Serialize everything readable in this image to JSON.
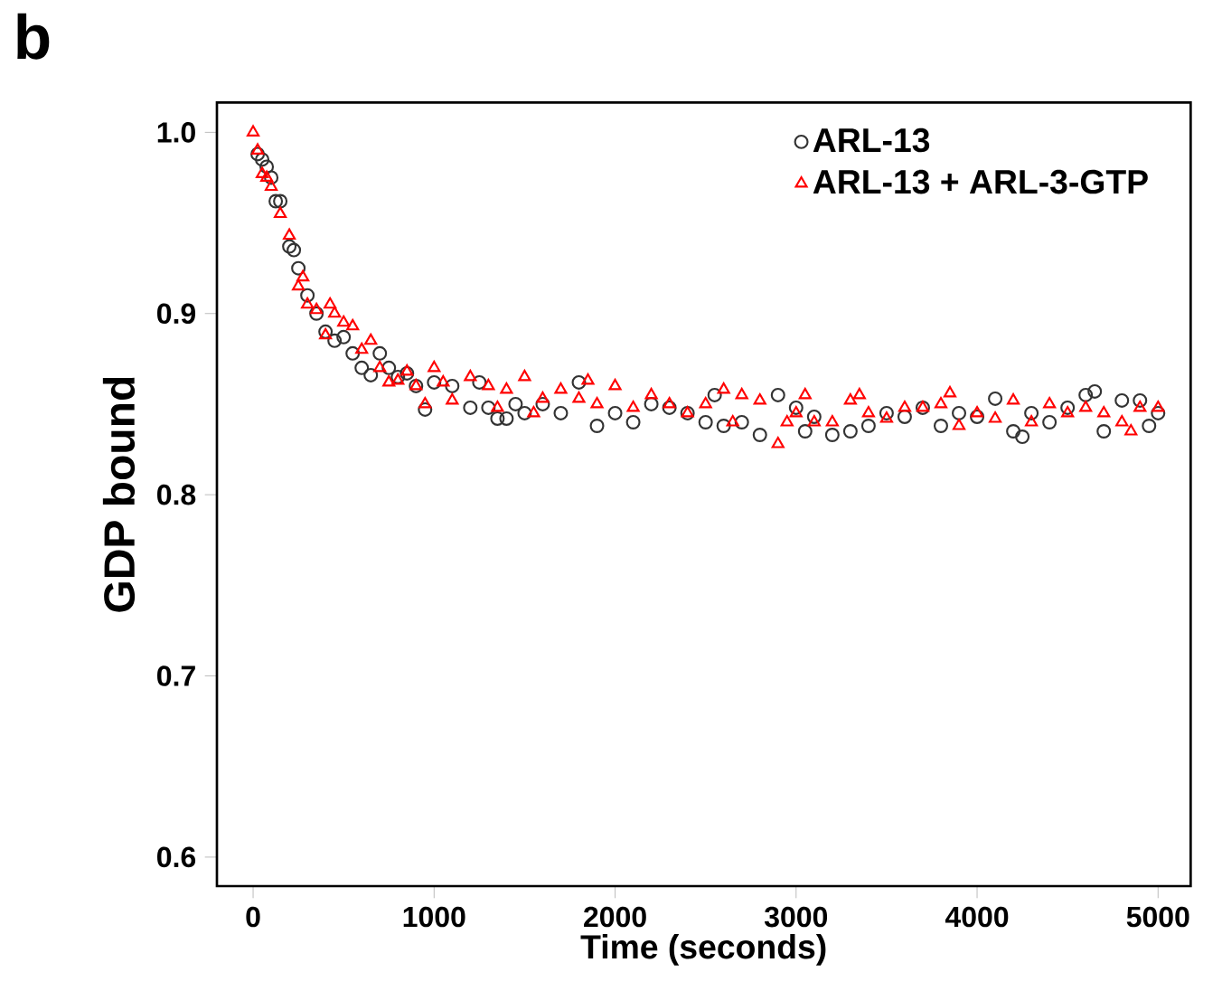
{
  "chart_data": {
    "type": "scatter",
    "xlabel": "Time (seconds)",
    "ylabel": "GDP bound",
    "annotations": [
      "b"
    ],
    "xlim": [
      -200,
      5180
    ],
    "ylim": [
      0.584,
      1.0165
    ],
    "xticks": [
      0,
      1000,
      2000,
      3000,
      4000,
      5000
    ],
    "yticks": [
      0.6,
      0.7,
      0.8,
      0.9,
      {
        "value": 1.0,
        "label": "1.0"
      }
    ],
    "legend": "top right",
    "series": [
      {
        "name": "ARL-13",
        "color": "#333333",
        "marker": "circle",
        "x": [
          25,
          50,
          75,
          100,
          125,
          150,
          200,
          225,
          250,
          300,
          350,
          400,
          450,
          500,
          550,
          600,
          650,
          700,
          750,
          800,
          850,
          900,
          950,
          1000,
          1100,
          1200,
          1250,
          1300,
          1350,
          1400,
          1450,
          1500,
          1600,
          1700,
          1800,
          1900,
          2000,
          2100,
          2200,
          2300,
          2400,
          2500,
          2550,
          2600,
          2700,
          2800,
          2900,
          3000,
          3050,
          3100,
          3200,
          3300,
          3400,
          3500,
          3600,
          3700,
          3800,
          3900,
          4000,
          4100,
          4200,
          4250,
          4300,
          4400,
          4500,
          4600,
          4650,
          4700,
          4800,
          4900,
          4950,
          5000
        ],
        "values": [
          0.988,
          0.985,
          0.981,
          0.975,
          0.962,
          0.962,
          0.937,
          0.935,
          0.925,
          0.91,
          0.9,
          0.89,
          0.885,
          0.887,
          0.878,
          0.87,
          0.866,
          0.878,
          0.87,
          0.865,
          0.867,
          0.86,
          0.847,
          0.862,
          0.86,
          0.848,
          0.862,
          0.848,
          0.842,
          0.842,
          0.85,
          0.845,
          0.85,
          0.845,
          0.862,
          0.838,
          0.845,
          0.84,
          0.85,
          0.848,
          0.845,
          0.84,
          0.855,
          0.838,
          0.84,
          0.833,
          0.855,
          0.848,
          0.835,
          0.843,
          0.833,
          0.835,
          0.838,
          0.845,
          0.843,
          0.848,
          0.838,
          0.845,
          0.843,
          0.853,
          0.835,
          0.832,
          0.845,
          0.84,
          0.848,
          0.855,
          0.857,
          0.835,
          0.852,
          0.852,
          0.838,
          0.845
        ]
      },
      {
        "name": "ARL-13 + ARL-3-GTP",
        "color": "#ff0000",
        "marker": "triangle",
        "x": [
          0,
          25,
          50,
          75,
          100,
          150,
          200,
          250,
          275,
          300,
          350,
          400,
          425,
          450,
          500,
          550,
          600,
          650,
          700,
          750,
          800,
          850,
          900,
          950,
          1000,
          1050,
          1100,
          1200,
          1300,
          1350,
          1400,
          1500,
          1550,
          1600,
          1700,
          1800,
          1850,
          1900,
          2000,
          2100,
          2200,
          2300,
          2400,
          2500,
          2600,
          2650,
          2700,
          2800,
          2900,
          2950,
          3000,
          3050,
          3100,
          3200,
          3300,
          3350,
          3400,
          3500,
          3600,
          3700,
          3800,
          3850,
          3900,
          4000,
          4100,
          4200,
          4300,
          4400,
          4500,
          4600,
          4700,
          4800,
          4850,
          4900,
          5000
        ],
        "values": [
          1.0,
          0.99,
          0.977,
          0.975,
          0.97,
          0.955,
          0.943,
          0.915,
          0.92,
          0.905,
          0.902,
          0.888,
          0.905,
          0.9,
          0.895,
          0.893,
          0.88,
          0.885,
          0.87,
          0.862,
          0.863,
          0.868,
          0.86,
          0.85,
          0.87,
          0.862,
          0.852,
          0.865,
          0.86,
          0.848,
          0.858,
          0.865,
          0.845,
          0.853,
          0.858,
          0.853,
          0.863,
          0.85,
          0.86,
          0.848,
          0.855,
          0.85,
          0.845,
          0.85,
          0.858,
          0.84,
          0.855,
          0.852,
          0.828,
          0.84,
          0.845,
          0.855,
          0.84,
          0.84,
          0.852,
          0.855,
          0.845,
          0.842,
          0.848,
          0.848,
          0.85,
          0.856,
          0.838,
          0.845,
          0.842,
          0.852,
          0.84,
          0.85,
          0.845,
          0.848,
          0.845,
          0.84,
          0.835,
          0.848,
          0.848
        ]
      }
    ]
  }
}
